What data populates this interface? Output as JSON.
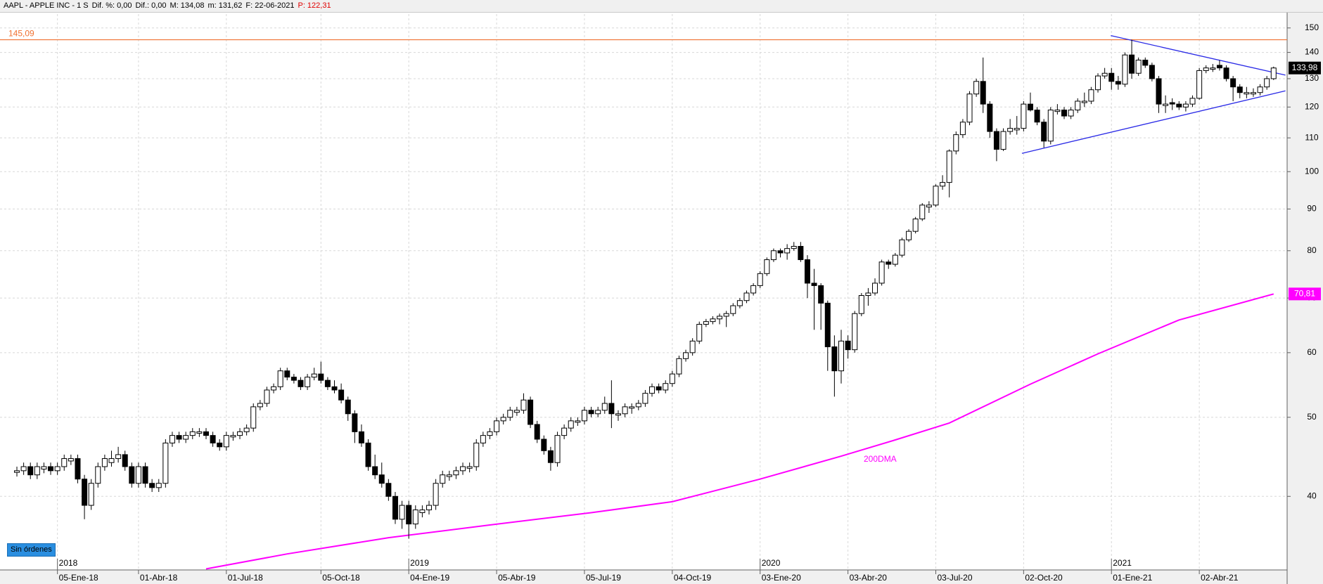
{
  "header": {
    "parts": [
      "AAPL - APPLE INC - 1 S",
      "Dif. %: 0,00",
      "Dif.: 0,00",
      "M: 134,08",
      "m: 131,62",
      "F: 22-06-2021"
    ],
    "last": "P: 122,31"
  },
  "button": "Sin órdenes",
  "chart_data": {
    "type": "candlestick",
    "xlim": [
      -2.5,
      188
    ],
    "ylim": [
      32.5,
      156
    ],
    "log_scale": true,
    "grid": true,
    "yticks": [
      40,
      50,
      60,
      70,
      80,
      90,
      100,
      110,
      120,
      130,
      140,
      150
    ],
    "xticks": [
      {
        "value": 6,
        "label": "05-Ene-18"
      },
      {
        "value": 18,
        "label": "01-Abr-18"
      },
      {
        "value": 31,
        "label": "01-Jul-18"
      },
      {
        "value": 45,
        "label": "05-Oct-18"
      },
      {
        "value": 58,
        "label": "04-Ene-19"
      },
      {
        "value": 71,
        "label": "05-Abr-19"
      },
      {
        "value": 84,
        "label": "05-Jul-19"
      },
      {
        "value": 97,
        "label": "04-Oct-19"
      },
      {
        "value": 110,
        "label": "03-Ene-20"
      },
      {
        "value": 123,
        "label": "03-Abr-20"
      },
      {
        "value": 136,
        "label": "03-Jul-20"
      },
      {
        "value": 149,
        "label": "02-Oct-20"
      },
      {
        "value": 162,
        "label": "01-Ene-21"
      },
      {
        "value": 175,
        "label": "02-Abr-21"
      }
    ],
    "year_ticks": [
      {
        "value": 6,
        "label": "2018"
      },
      {
        "value": 58,
        "label": "2019"
      },
      {
        "value": 110,
        "label": "2020"
      },
      {
        "value": 162,
        "label": "2021"
      }
    ],
    "up_color": "#ffffff",
    "down_color": "#000000",
    "candles": [
      [
        42.8,
        43.5,
        42.3,
        43
      ],
      [
        43,
        44,
        42.5,
        43.5
      ],
      [
        43.5,
        44,
        42,
        42.5
      ],
      [
        42.5,
        44,
        42,
        43.5
      ],
      [
        43.2,
        44,
        42.7,
        43.5
      ],
      [
        43.5,
        44,
        42.5,
        43
      ],
      [
        43,
        44,
        42.5,
        43.5
      ],
      [
        43.5,
        45,
        43,
        44.5
      ],
      [
        44.2,
        45,
        43.7,
        44.5
      ],
      [
        44.5,
        45,
        41.5,
        42
      ],
      [
        42,
        42.5,
        37.5,
        39
      ],
      [
        39,
        42,
        38.5,
        41.5
      ],
      [
        41.5,
        44,
        41,
        43.5
      ],
      [
        43.5,
        45,
        43,
        44.5
      ],
      [
        44,
        45.5,
        43.5,
        44.5
      ],
      [
        44.5,
        46,
        44,
        45
      ],
      [
        45,
        45.5,
        43,
        43.5
      ],
      [
        43.5,
        44,
        41,
        41.5
      ],
      [
        41.5,
        44,
        41,
        43.5
      ],
      [
        43.5,
        44,
        41,
        41.5
      ],
      [
        41.5,
        42,
        40.5,
        41
      ],
      [
        41,
        42,
        40.5,
        41.5
      ],
      [
        41.5,
        47,
        41,
        46.5
      ],
      [
        46.5,
        48,
        46,
        47.5
      ],
      [
        47.5,
        48,
        46.5,
        47
      ],
      [
        47,
        48,
        46.5,
        47.5
      ],
      [
        47.5,
        48.5,
        47,
        48
      ],
      [
        47.8,
        48.5,
        47.3,
        48
      ],
      [
        48,
        48.5,
        47,
        47.5
      ],
      [
        47.5,
        48,
        46,
        46.5
      ],
      [
        46.5,
        47,
        45.5,
        46
      ],
      [
        46,
        48,
        45.5,
        47.5
      ],
      [
        47.3,
        48,
        46.8,
        47.5
      ],
      [
        47.5,
        48.5,
        47,
        48
      ],
      [
        48,
        49,
        47.5,
        48.5
      ],
      [
        48.5,
        52,
        48,
        51.5
      ],
      [
        51.5,
        52.5,
        51,
        52
      ],
      [
        52,
        54.5,
        51.5,
        54
      ],
      [
        54,
        55,
        53.5,
        54.5
      ],
      [
        54.5,
        57.5,
        54,
        57
      ],
      [
        57,
        57.5,
        55.5,
        56
      ],
      [
        56,
        56.5,
        55,
        55.5
      ],
      [
        55.5,
        56,
        54,
        54.5
      ],
      [
        54.5,
        56.5,
        54,
        56
      ],
      [
        56,
        57.5,
        55.5,
        56.5
      ],
      [
        56.5,
        58.5,
        55,
        55.5
      ],
      [
        55.5,
        56,
        54,
        54.5
      ],
      [
        54.5,
        55.5,
        53.5,
        54
      ],
      [
        54,
        55,
        52,
        52.5
      ],
      [
        52.5,
        53,
        49.5,
        50.5
      ],
      [
        50.5,
        51,
        46.5,
        48
      ],
      [
        48,
        49,
        46,
        46.5
      ],
      [
        46.5,
        47,
        43,
        43.5
      ],
      [
        43.5,
        45,
        42,
        42.5
      ],
      [
        42.5,
        44,
        41,
        41.5
      ],
      [
        41.5,
        42,
        39.5,
        40
      ],
      [
        40,
        40.5,
        37,
        37.5
      ],
      [
        37.5,
        39.5,
        36.5,
        39
      ],
      [
        39,
        39.5,
        35.5,
        37
      ],
      [
        37,
        39,
        36.5,
        38.5
      ],
      [
        38.2,
        39,
        37.7,
        38.5
      ],
      [
        38.5,
        39.5,
        38,
        39
      ],
      [
        39,
        42,
        38.5,
        41.5
      ],
      [
        41.5,
        43,
        41,
        42.5
      ],
      [
        42.3,
        43,
        41.8,
        42.5
      ],
      [
        42.5,
        43.5,
        42,
        43
      ],
      [
        43,
        44,
        42.5,
        43.5
      ],
      [
        43.3,
        44,
        42.8,
        43.5
      ],
      [
        43.5,
        47,
        43,
        46.5
      ],
      [
        46.5,
        48,
        46,
        47.5
      ],
      [
        47.5,
        48.5,
        47,
        48
      ],
      [
        48,
        50,
        47.5,
        49.5
      ],
      [
        49.5,
        50.5,
        49,
        50
      ],
      [
        50,
        51.5,
        49.5,
        51
      ],
      [
        50.7,
        51.5,
        50.2,
        51
      ],
      [
        51,
        53.5,
        50.5,
        52.5
      ],
      [
        52.5,
        53,
        48.5,
        49
      ],
      [
        49,
        49.5,
        46.5,
        47
      ],
      [
        47,
        47.5,
        45,
        45.5
      ],
      [
        45.5,
        46,
        43,
        44
      ],
      [
        44,
        48,
        43.5,
        47.5
      ],
      [
        47.5,
        49,
        47,
        48.5
      ],
      [
        48.5,
        50,
        48,
        49.5
      ],
      [
        49.3,
        50,
        48.8,
        49.5
      ],
      [
        49.5,
        51.5,
        49,
        51
      ],
      [
        51,
        51.5,
        50,
        50.5
      ],
      [
        50.5,
        51.5,
        50,
        51
      ],
      [
        51,
        53,
        50.5,
        52
      ],
      [
        52,
        55.5,
        48.5,
        50.5
      ],
      [
        50.3,
        51,
        49.5,
        50.5
      ],
      [
        50.5,
        52,
        50,
        51.5
      ],
      [
        51.3,
        52,
        50.5,
        51.5
      ],
      [
        51.5,
        52.5,
        51,
        52
      ],
      [
        52,
        54,
        51.5,
        53.5
      ],
      [
        53.5,
        55,
        53,
        54.5
      ],
      [
        54.5,
        55,
        53.5,
        54
      ],
      [
        54,
        55.5,
        53.5,
        55
      ],
      [
        55,
        57,
        54.5,
        56.5
      ],
      [
        56.5,
        59.5,
        56,
        59
      ],
      [
        59,
        60.5,
        58.5,
        60
      ],
      [
        60,
        62.5,
        59.5,
        62
      ],
      [
        62,
        65.5,
        61.5,
        65
      ],
      [
        65,
        66,
        64.5,
        65.5
      ],
      [
        65.5,
        66.5,
        65,
        66
      ],
      [
        66,
        67,
        65,
        66.5
      ],
      [
        66.5,
        67.5,
        64.5,
        67
      ],
      [
        67,
        69,
        66.5,
        68.5
      ],
      [
        68.5,
        70,
        68,
        69.5
      ],
      [
        69.5,
        71.5,
        69,
        71
      ],
      [
        71,
        73,
        70.5,
        72.5
      ],
      [
        72.5,
        75.5,
        72,
        75
      ],
      [
        75,
        78.5,
        74.5,
        78
      ],
      [
        78,
        80.5,
        77.5,
        80
      ],
      [
        80,
        80.5,
        78.5,
        79.5
      ],
      [
        79.5,
        81.5,
        78,
        80.5
      ],
      [
        80.5,
        82,
        80,
        81
      ],
      [
        81,
        82,
        77.5,
        78
      ],
      [
        78,
        79,
        70,
        73
      ],
      [
        73,
        76,
        64,
        72.5
      ],
      [
        72.5,
        73,
        64,
        69
      ],
      [
        69,
        69.5,
        57,
        61
      ],
      [
        61,
        63,
        53,
        57
      ],
      [
        57,
        64,
        55,
        62
      ],
      [
        62,
        63,
        59,
        60.5
      ],
      [
        60.5,
        67.5,
        60,
        67
      ],
      [
        67,
        71,
        66.5,
        70.5
      ],
      [
        70.5,
        72,
        68.5,
        71
      ],
      [
        71,
        74,
        70.5,
        73
      ],
      [
        73,
        78,
        72.5,
        77.5
      ],
      [
        77.5,
        78,
        76,
        77
      ],
      [
        77,
        79.5,
        76.5,
        79
      ],
      [
        79,
        83,
        78.5,
        82.5
      ],
      [
        82.5,
        85,
        82,
        84.5
      ],
      [
        84.5,
        88,
        84,
        87.5
      ],
      [
        87.5,
        91.5,
        87,
        91
      ],
      [
        90.5,
        92,
        89,
        91
      ],
      [
        91,
        96.5,
        90.5,
        96
      ],
      [
        96,
        99,
        95,
        97
      ],
      [
        97,
        106.5,
        93,
        106
      ],
      [
        106,
        112,
        105,
        111
      ],
      [
        111,
        116,
        110,
        115
      ],
      [
        115,
        125.5,
        114,
        124.5
      ],
      [
        124.5,
        130,
        123.5,
        129
      ],
      [
        129,
        138,
        118,
        121
      ],
      [
        121,
        122,
        110,
        112
      ],
      [
        112,
        113,
        103,
        106.5
      ],
      [
        106.5,
        113,
        106,
        112
      ],
      [
        112,
        116,
        111,
        113
      ],
      [
        112.5,
        117,
        111,
        113
      ],
      [
        113,
        122,
        112,
        121
      ],
      [
        121,
        125,
        118.5,
        119
      ],
      [
        119,
        120,
        114,
        115
      ],
      [
        115,
        116,
        107,
        109
      ],
      [
        109,
        120,
        108,
        119
      ],
      [
        118.5,
        121,
        117.5,
        119
      ],
      [
        119,
        120,
        116,
        117
      ],
      [
        117,
        120,
        116,
        119
      ],
      [
        119,
        123,
        118,
        122
      ],
      [
        121.5,
        125,
        120,
        122
      ],
      [
        122,
        127,
        121,
        126
      ],
      [
        126,
        132,
        125,
        131
      ],
      [
        131,
        134,
        130,
        132
      ],
      [
        132,
        134,
        126,
        129
      ],
      [
        129,
        131,
        126,
        128
      ],
      [
        128,
        140,
        127,
        139
      ],
      [
        139,
        145.1,
        130,
        132
      ],
      [
        132,
        138,
        131,
        137
      ],
      [
        137,
        138,
        134,
        135
      ],
      [
        135,
        136,
        129,
        130
      ],
      [
        130,
        131,
        118,
        121
      ],
      [
        120.5,
        124,
        118,
        121
      ],
      [
        121.5,
        123,
        119,
        121
      ],
      [
        121,
        122,
        119,
        120
      ],
      [
        120,
        122,
        118.5,
        121
      ],
      [
        121,
        124,
        120,
        123
      ],
      [
        123,
        134,
        122.5,
        133
      ],
      [
        133,
        135,
        132,
        134
      ],
      [
        133.5,
        135.5,
        132.5,
        134
      ],
      [
        135,
        137,
        133,
        134
      ],
      [
        134,
        135,
        129,
        130
      ],
      [
        130,
        131,
        122,
        127
      ],
      [
        127,
        128,
        123,
        125
      ],
      [
        124.5,
        127,
        123,
        125
      ],
      [
        124.5,
        126.5,
        123.5,
        125
      ],
      [
        125,
        128,
        124,
        127
      ],
      [
        127,
        131,
        126,
        130
      ],
      [
        130,
        134.5,
        129.5,
        133.98
      ]
    ],
    "moving_average": {
      "name": "200DMA",
      "color": "#ff00ff",
      "x": [
        28,
        40,
        55,
        70,
        85,
        97,
        110,
        122,
        130,
        138,
        150,
        160,
        172,
        186
      ],
      "values": [
        32.6,
        34.0,
        35.6,
        36.9,
        38.2,
        39.4,
        42.0,
        44.8,
        46.9,
        49.2,
        54.9,
        59.8,
        65.8,
        70.81
      ]
    },
    "hline": {
      "value": 145.09,
      "label": "145,09",
      "color": "#f07030"
    },
    "trendlines": [
      {
        "color": "#2a2ae6",
        "x": [
          161.9,
          187.75
        ],
        "values": [
          146.8,
          131.3
        ]
      },
      {
        "color": "#2a2ae6",
        "x": [
          148.75,
          187.75
        ],
        "values": [
          105.3,
          125.6
        ]
      }
    ],
    "price_tags": [
      {
        "value": 133.98,
        "label": "133,98",
        "color": "#000000"
      },
      {
        "value": 70.81,
        "label": "70,81",
        "color": "#ff00ff"
      }
    ]
  }
}
